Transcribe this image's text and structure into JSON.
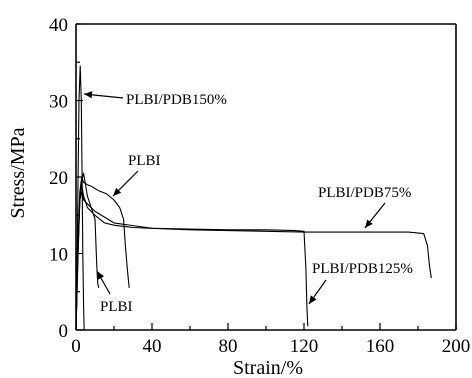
{
  "chart_data": {
    "type": "line",
    "xlabel": "Strain/%",
    "ylabel": "Stress/MPa",
    "xlim": [
      0,
      200
    ],
    "ylim": [
      0,
      40
    ],
    "xticks": [
      "0",
      "40",
      "80",
      "120",
      "160",
      "200"
    ],
    "yticks": [
      "0",
      "10",
      "20",
      "30",
      "40"
    ],
    "grid": false,
    "series": [
      {
        "name": "PLBI/PDB150%",
        "x": [
          0,
          0.5,
          1,
          1.6,
          2.2,
          2.8,
          3.2,
          3.6,
          4.0,
          4.3
        ],
        "y": [
          0,
          7,
          18,
          30,
          34.5,
          30,
          20,
          10,
          3,
          0
        ]
      },
      {
        "name": "PLBI",
        "x": [
          0,
          1,
          2,
          3,
          4,
          5,
          6,
          8,
          10,
          10.5,
          11,
          11.5,
          12
        ],
        "y": [
          0,
          10,
          17,
          19.5,
          20.5,
          19,
          17.5,
          16,
          14.5,
          11,
          8,
          6,
          5.5
        ]
      },
      {
        "name": "PLBI",
        "x": [
          0,
          1,
          2,
          3,
          4,
          6,
          8,
          12,
          16,
          20,
          23,
          25,
          26,
          27,
          28
        ],
        "y": [
          0,
          11,
          18,
          20,
          19.3,
          19,
          18.8,
          18.2,
          17.8,
          17,
          16,
          14.5,
          11,
          8,
          5.5
        ]
      },
      {
        "name": "PLBI/PDB125%",
        "x": [
          0,
          1,
          2,
          3,
          4,
          6,
          10,
          15,
          20,
          30,
          40,
          60,
          80,
          100,
          115,
          120,
          121,
          121.5,
          122
        ],
        "y": [
          0,
          9,
          17,
          19,
          17.5,
          16,
          15,
          14,
          13.7,
          13.4,
          13.3,
          13.2,
          13.1,
          13.1,
          13.0,
          12.9,
          8,
          3,
          0.5
        ]
      },
      {
        "name": "PLBI/PDB75%",
        "x": [
          0,
          1,
          2,
          3,
          4,
          6,
          10,
          20,
          40,
          60,
          80,
          100,
          120,
          140,
          160,
          175,
          183,
          185,
          186,
          187
        ],
        "y": [
          0,
          10,
          17,
          18,
          17,
          16.5,
          15.5,
          14,
          13.3,
          13.1,
          13.0,
          12.9,
          12.8,
          12.8,
          12.8,
          12.8,
          12.6,
          11,
          8.5,
          6.8
        ]
      }
    ],
    "annotations": [
      {
        "text": "PLBI/PDB150%"
      },
      {
        "text": "PLBI"
      },
      {
        "text": "PLBI/PDB75%"
      },
      {
        "text": "PLBI/PDB125%"
      },
      {
        "text": "PLBI"
      }
    ]
  }
}
